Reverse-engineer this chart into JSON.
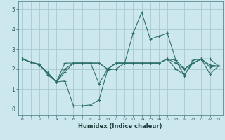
{
  "xlabel": "Humidex (Indice chaleur)",
  "background_color": "#cce8ee",
  "grid_color": "#aac8d0",
  "line_color": "#2d7068",
  "x_ticks": [
    0,
    1,
    2,
    3,
    4,
    5,
    6,
    7,
    8,
    9,
    10,
    11,
    12,
    13,
    14,
    15,
    16,
    17,
    18,
    19,
    20,
    21,
    22,
    23
  ],
  "y_ticks": [
    0,
    1,
    2,
    3,
    4,
    5
  ],
  "xlim": [
    -0.5,
    23.5
  ],
  "ylim": [
    -0.3,
    5.4
  ],
  "lines": [
    {
      "x": [
        0,
        1,
        2,
        3,
        4,
        5,
        6,
        7,
        8,
        9,
        10,
        11,
        12,
        13,
        14,
        15,
        16,
        17,
        18,
        19,
        20,
        21,
        22,
        23
      ],
      "y": [
        2.5,
        2.35,
        2.25,
        1.7,
        1.35,
        1.4,
        0.15,
        0.15,
        0.2,
        0.45,
        1.95,
        2.0,
        2.3,
        3.8,
        4.85,
        3.5,
        3.65,
        3.8,
        2.45,
        1.65,
        2.45,
        2.5,
        1.75,
        2.15
      ]
    },
    {
      "x": [
        0,
        1,
        2,
        3,
        4,
        5,
        6,
        7,
        8,
        9,
        10,
        11,
        12,
        13,
        14,
        15,
        16,
        17,
        18,
        19,
        20,
        21,
        22,
        23
      ],
      "y": [
        2.5,
        2.35,
        2.2,
        1.8,
        1.35,
        1.85,
        2.3,
        2.3,
        2.3,
        1.25,
        2.0,
        2.3,
        2.3,
        2.3,
        2.3,
        2.3,
        2.3,
        2.5,
        2.45,
        2.0,
        2.3,
        2.5,
        2.1,
        2.15
      ]
    },
    {
      "x": [
        0,
        1,
        2,
        3,
        4,
        5,
        6,
        7,
        8,
        9,
        10,
        11,
        12,
        13,
        14,
        15,
        16,
        17,
        18,
        19,
        20,
        21,
        22,
        23
      ],
      "y": [
        2.5,
        2.35,
        2.2,
        1.8,
        1.35,
        2.0,
        2.3,
        2.3,
        2.3,
        2.3,
        2.0,
        2.3,
        2.3,
        2.3,
        2.3,
        2.3,
        2.3,
        2.5,
        2.0,
        1.7,
        2.3,
        2.5,
        2.2,
        2.15
      ]
    },
    {
      "x": [
        0,
        1,
        2,
        3,
        4,
        5,
        6,
        7,
        8,
        9,
        10,
        11,
        12,
        13,
        14,
        15,
        16,
        17,
        18,
        19,
        20,
        21,
        22,
        23
      ],
      "y": [
        2.5,
        2.35,
        2.2,
        1.8,
        1.35,
        2.3,
        2.3,
        2.3,
        2.3,
        2.3,
        2.0,
        2.3,
        2.3,
        2.3,
        2.3,
        2.3,
        2.3,
        2.5,
        2.3,
        2.0,
        2.3,
        2.5,
        2.5,
        2.15
      ]
    }
  ]
}
